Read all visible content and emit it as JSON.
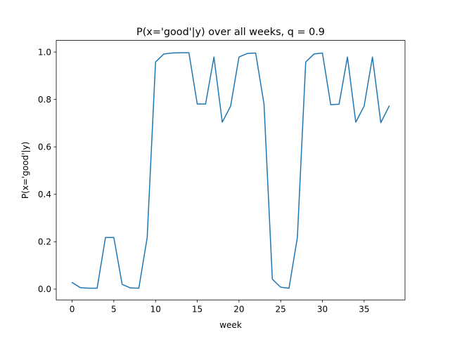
{
  "chart_data": {
    "type": "line",
    "title": "P(x='good'|y) over all weeks, q = 0.9",
    "xlabel": "week",
    "ylabel": "P(x='good'|y)",
    "xlim": [
      -1.9,
      39.9
    ],
    "ylim": [
      -0.0455,
      1.0489
    ],
    "x_ticks": [
      0,
      5,
      10,
      15,
      20,
      25,
      30,
      35
    ],
    "y_ticks": [
      0.0,
      0.2,
      0.4,
      0.6,
      0.8,
      1.0
    ],
    "x_tick_labels": [
      "0",
      "5",
      "10",
      "15",
      "20",
      "25",
      "30",
      "35"
    ],
    "y_tick_labels": [
      "0.0",
      "0.2",
      "0.4",
      "0.6",
      "0.8",
      "1.0"
    ],
    "grid": false,
    "line_color": "#1f77b4",
    "series": [
      {
        "x": [
          0,
          1,
          2,
          3,
          4,
          5,
          6,
          7,
          8,
          9,
          10,
          11,
          12,
          13,
          14,
          15,
          16,
          17,
          18,
          19,
          20,
          21,
          22,
          23,
          24,
          25,
          26,
          27,
          28,
          29,
          30,
          31,
          32,
          33,
          34,
          35,
          36,
          37,
          38
        ],
        "values": [
          0.028,
          0.006,
          0.004,
          0.004,
          0.218,
          0.218,
          0.02,
          0.005,
          0.004,
          0.218,
          0.958,
          0.992,
          0.996,
          0.997,
          0.997,
          0.781,
          0.781,
          0.979,
          0.704,
          0.772,
          0.979,
          0.994,
          0.996,
          0.781,
          0.042,
          0.008,
          0.004,
          0.218,
          0.958,
          0.992,
          0.996,
          0.778,
          0.78,
          0.979,
          0.704,
          0.772,
          0.979,
          0.702,
          0.772
        ]
      }
    ]
  }
}
